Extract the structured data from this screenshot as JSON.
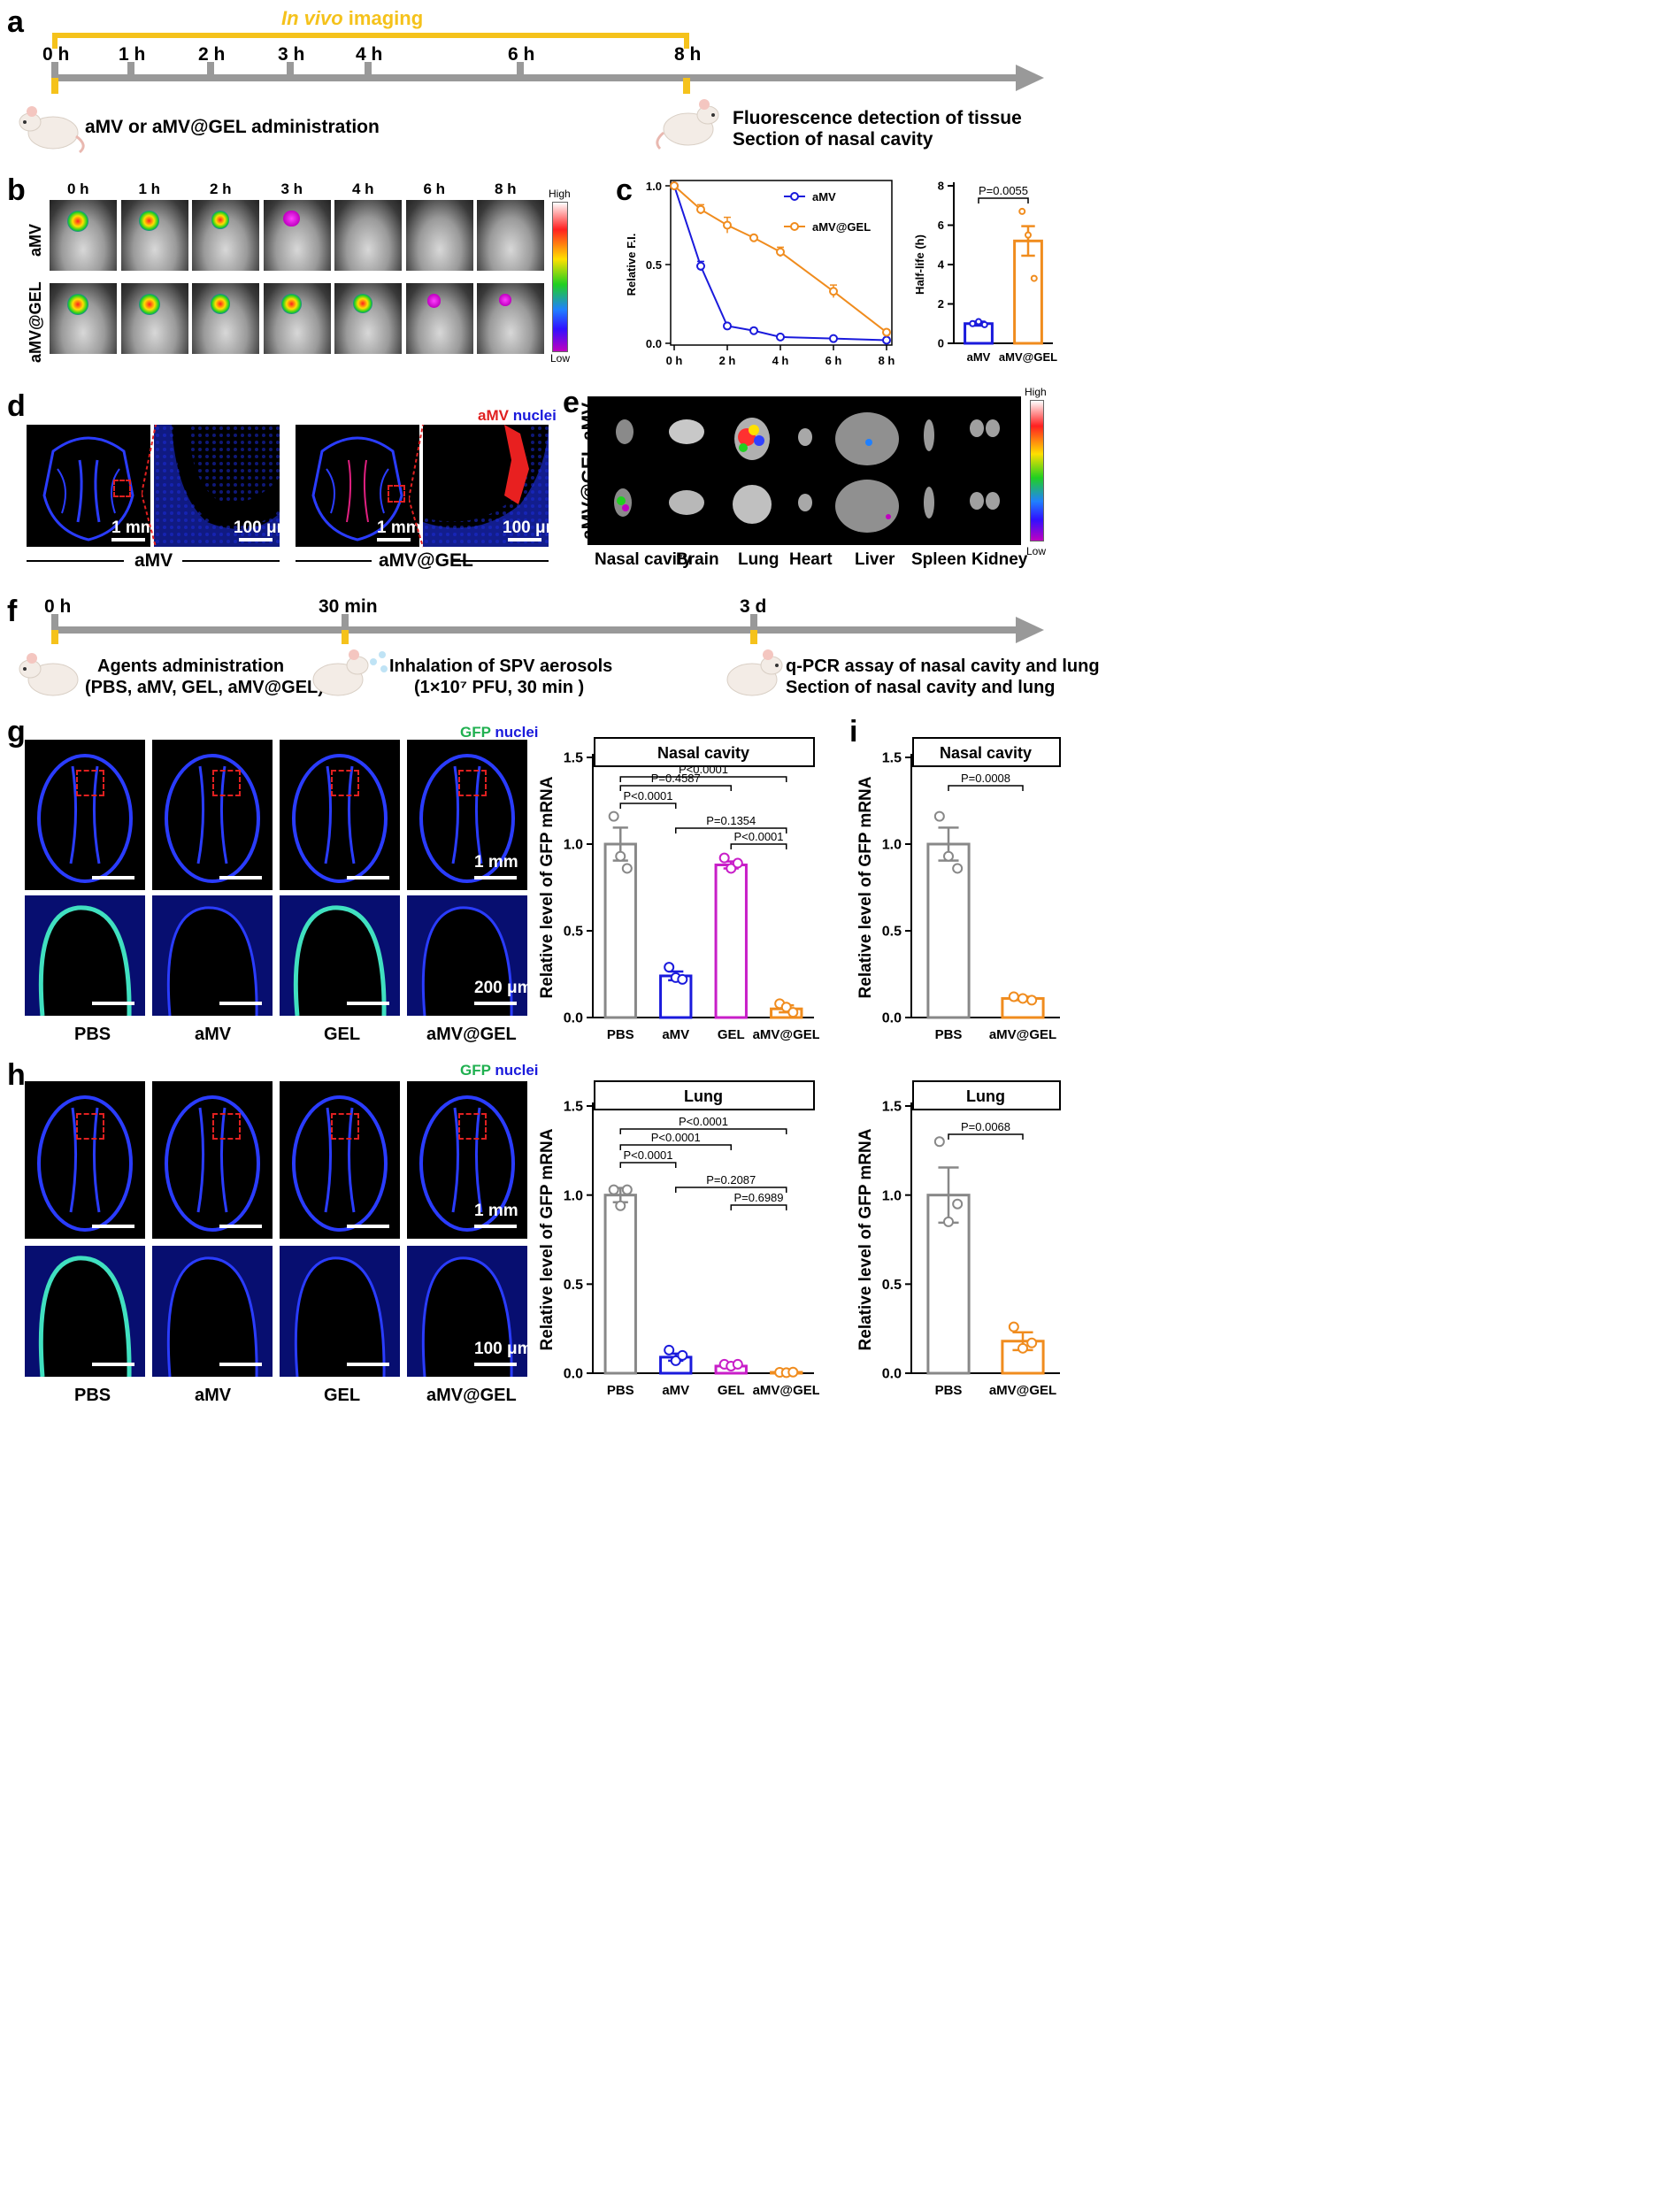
{
  "panels": {
    "a": {
      "letter": "a",
      "imaging_label_italic": "In vivo",
      "imaging_label_rest": " imaging",
      "timepoints": [
        "0 h",
        "1 h",
        "2 h",
        "3 h",
        "4 h",
        "6 h",
        "8 h"
      ],
      "left_caption": "aMV or aMV@GEL administration",
      "right_caption_1": "Fluorescence  detection of tissue",
      "right_caption_2": "Section of nasal cavity"
    },
    "b": {
      "letter": "b",
      "timepoints": [
        "0 h",
        "1 h",
        "2 h",
        "3 h",
        "4 h",
        "6 h",
        "8 h"
      ],
      "rows": [
        "aMV",
        "aMV@GEL"
      ],
      "scale_high": "High",
      "scale_low": "Low"
    },
    "c": {
      "letter": "c",
      "line_ylabel": "Relative F.I.",
      "bar_ylabel": "Half-life (h)",
      "pvalue": "P=0.0055"
    },
    "d": {
      "letter": "d",
      "legend_red": "aMV",
      "legend_blue": "nuclei",
      "scale_1mm": "1 mm",
      "scale_100um": "100 μm",
      "group_left": "aMV",
      "group_right": "aMV@GEL"
    },
    "e": {
      "letter": "e",
      "rows": [
        "aMV",
        "aMV@GEL"
      ],
      "organs": [
        "Nasal cavity",
        "Brain",
        "Lung",
        "Heart",
        "Liver",
        "Spleen",
        "Kidney"
      ],
      "scale_high": "High",
      "scale_low": "Low"
    },
    "f": {
      "letter": "f",
      "timepoints": [
        "0 h",
        "30 min",
        "3 d"
      ],
      "caption_1a": "Agents administration",
      "caption_1b": "(PBS, aMV, GEL, aMV@GEL)",
      "caption_2a": "Inhalation of SPV aerosols",
      "caption_2b": "(1×10⁷ PFU, 30 min )",
      "caption_3a": "q-PCR assay of nasal cavity and lung",
      "caption_3b": "Section of nasal cavity and lung"
    },
    "g": {
      "letter": "g",
      "legend_green": "GFP",
      "legend_blue": "nuclei",
      "groups": [
        "PBS",
        "aMV",
        "GEL",
        "aMV@GEL"
      ],
      "scale_top": "1 mm",
      "scale_bottom": "200 μm"
    },
    "h": {
      "letter": "h",
      "legend_green": "GFP",
      "legend_blue": "nuclei",
      "groups": [
        "PBS",
        "aMV",
        "GEL",
        "aMV@GEL"
      ],
      "scale_top": "1 mm",
      "scale_bottom": "100 μm"
    },
    "i": {
      "letter": "i"
    }
  },
  "colors": {
    "gray": "#888888",
    "blue": "#1a1adc",
    "magenta": "#c81ec8",
    "orange": "#f08c1e",
    "yellow": "#f5c21b"
  },
  "chart_data": [
    {
      "id": "c-line",
      "type": "line",
      "ylabel": "Relative F.I.",
      "categories": [
        "0 h",
        "",
        "2 h",
        "",
        "4 h",
        "6 h",
        "8 h"
      ],
      "x": [
        0,
        1,
        2,
        3,
        4,
        6,
        8
      ],
      "xticklabels": [
        "0 h",
        "2 h",
        "4 h",
        "6 h",
        "8 h"
      ],
      "xticks": [
        0,
        2,
        4,
        6,
        8
      ],
      "ylim": [
        0,
        1.0
      ],
      "yticks": [
        0.0,
        0.5,
        1.0
      ],
      "legend": "top-right",
      "series": [
        {
          "name": "aMV",
          "color": "#1a1adc",
          "values": [
            1.0,
            0.49,
            0.11,
            0.08,
            0.04,
            0.03,
            0.02
          ],
          "err": [
            0,
            0.03,
            0.015,
            0.015,
            0.005,
            0.005,
            0.005
          ]
        },
        {
          "name": "aMV@GEL",
          "color": "#f08c1e",
          "values": [
            1.0,
            0.85,
            0.75,
            0.67,
            0.58,
            0.33,
            0.07
          ],
          "err": [
            0,
            0.03,
            0.05,
            0.015,
            0.03,
            0.04,
            0.015
          ]
        }
      ]
    },
    {
      "id": "c-bar",
      "type": "bar",
      "ylabel": "Half-life (h)",
      "categories": [
        "aMV",
        "aMV@GEL"
      ],
      "values": [
        1.0,
        5.2
      ],
      "err": [
        0.1,
        0.75
      ],
      "points": [
        [
          1.0,
          1.1,
          0.95
        ],
        [
          6.7,
          5.5,
          3.3
        ]
      ],
      "ylim": [
        0,
        8
      ],
      "yticks": [
        0,
        2,
        4,
        6,
        8
      ],
      "colors": [
        "#1a1adc",
        "#f08c1e"
      ],
      "comparisons": [
        {
          "a": 0,
          "b": 1,
          "label": "P=0.0055"
        }
      ]
    },
    {
      "id": "g-bar",
      "type": "bar",
      "title": "Nasal cavity",
      "ylabel": "Relative level of GFP mRNA",
      "categories": [
        "PBS",
        "aMV",
        "GEL",
        "aMV@GEL"
      ],
      "values": [
        1.0,
        0.24,
        0.88,
        0.05
      ],
      "err": [
        0.095,
        0.025,
        0.02,
        0.02
      ],
      "points": [
        [
          1.16,
          0.93,
          0.86
        ],
        [
          0.29,
          0.23,
          0.22
        ],
        [
          0.92,
          0.86,
          0.89
        ],
        [
          0.08,
          0.06,
          0.03
        ]
      ],
      "ylim": [
        0,
        1.5
      ],
      "yticks": [
        0.0,
        0.5,
        1.0,
        1.5
      ],
      "colors": [
        "#888888",
        "#1a1adc",
        "#c81ec8",
        "#f08c1e"
      ],
      "comparisons": [
        {
          "a": 0,
          "b": 3,
          "label": "P<0.0001"
        },
        {
          "a": 0,
          "b": 2,
          "label": "P=0.4587"
        },
        {
          "a": 0,
          "b": 1,
          "label": "P<0.0001"
        },
        {
          "a": 1,
          "b": 3,
          "label": "P=0.1354"
        },
        {
          "a": 2,
          "b": 3,
          "label": "P<0.0001"
        }
      ]
    },
    {
      "id": "h-bar",
      "type": "bar",
      "title": "Lung",
      "ylabel": "Relative level of GFP mRNA",
      "categories": [
        "PBS",
        "aMV",
        "GEL",
        "aMV@GEL"
      ],
      "values": [
        1.0,
        0.09,
        0.04,
        0.005
      ],
      "err": [
        0.04,
        0.02,
        0.005,
        0.002
      ],
      "points": [
        [
          1.03,
          0.94,
          1.03
        ],
        [
          0.13,
          0.07,
          0.1
        ],
        [
          0.05,
          0.04,
          0.05
        ],
        [
          0.005,
          0.003,
          0.006
        ]
      ],
      "ylim": [
        0,
        1.5
      ],
      "yticks": [
        0.0,
        0.5,
        1.0,
        1.5
      ],
      "colors": [
        "#888888",
        "#1a1adc",
        "#c81ec8",
        "#f08c1e"
      ],
      "comparisons": [
        {
          "a": 0,
          "b": 3,
          "label": "P<0.0001"
        },
        {
          "a": 0,
          "b": 2,
          "label": "P<0.0001"
        },
        {
          "a": 0,
          "b": 1,
          "label": "P<0.0001"
        },
        {
          "a": 1,
          "b": 3,
          "label": "P=0.2087"
        },
        {
          "a": 2,
          "b": 3,
          "label": "P=0.6989"
        }
      ]
    },
    {
      "id": "i-top",
      "type": "bar",
      "title": "Nasal cavity",
      "ylabel": "Relative level of GFP mRNA",
      "categories": [
        "PBS",
        "aMV@GEL"
      ],
      "values": [
        1.0,
        0.11
      ],
      "err": [
        0.095,
        0.01
      ],
      "points": [
        [
          1.16,
          0.93,
          0.86
        ],
        [
          0.12,
          0.11,
          0.1
        ]
      ],
      "ylim": [
        0,
        1.5
      ],
      "yticks": [
        0.0,
        0.5,
        1.0,
        1.5
      ],
      "colors": [
        "#888888",
        "#f08c1e"
      ],
      "comparisons": [
        {
          "a": 0,
          "b": 1,
          "label": "P=0.0008"
        }
      ]
    },
    {
      "id": "i-bottom",
      "type": "bar",
      "title": "Lung",
      "ylabel": "Relative level of GFP mRNA",
      "categories": [
        "PBS",
        "aMV@GEL"
      ],
      "values": [
        1.0,
        0.18
      ],
      "err": [
        0.155,
        0.05
      ],
      "points": [
        [
          1.3,
          0.85,
          0.95
        ],
        [
          0.26,
          0.14,
          0.17
        ]
      ],
      "ylim": [
        0,
        1.5
      ],
      "yticks": [
        0.0,
        0.5,
        1.0,
        1.5
      ],
      "colors": [
        "#888888",
        "#f08c1e"
      ],
      "comparisons": [
        {
          "a": 0,
          "b": 1,
          "label": "P=0.0068"
        }
      ]
    }
  ]
}
